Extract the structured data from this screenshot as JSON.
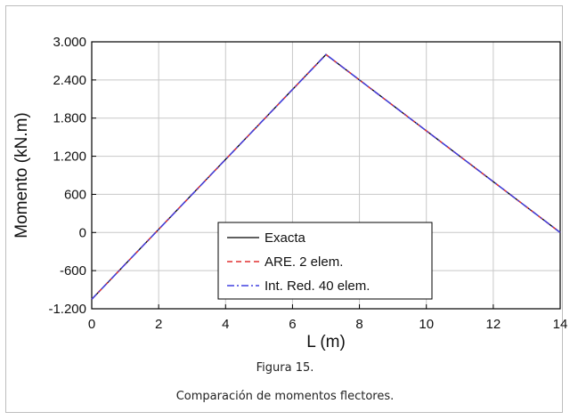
{
  "chart_data": {
    "type": "line",
    "xlabel": "L (m)",
    "ylabel": "Momento (kN.m)",
    "xlim": [
      0,
      14
    ],
    "ylim": [
      -1200,
      3000
    ],
    "x_ticks": [
      0,
      2,
      4,
      6,
      8,
      10,
      12,
      14
    ],
    "y_ticks": [
      -1200,
      -600,
      0,
      600,
      1200,
      1800,
      2400,
      3000
    ],
    "x_tick_labels": [
      "0",
      "2",
      "4",
      "6",
      "8",
      "10",
      "12",
      "14"
    ],
    "y_tick_labels": [
      "-1.200",
      "-600",
      "0",
      "600",
      "1.200",
      "1.800",
      "2.400",
      "3.000"
    ],
    "grid": true,
    "legend_position": "bottom-center",
    "series": [
      {
        "name": "Exacta",
        "color": "#000000",
        "style": "solid",
        "x": [
          0,
          7,
          14
        ],
        "y": [
          -1050,
          2800,
          0
        ]
      },
      {
        "name": "ARE. 2 elem.",
        "color": "#e03030",
        "style": "dashed",
        "x": [
          0,
          7,
          14
        ],
        "y": [
          -1050,
          2800,
          0
        ]
      },
      {
        "name": "Int. Red. 40 elem.",
        "color": "#4040e0",
        "style": "dashdot",
        "x": [
          0,
          0.35,
          0.7,
          1.05,
          1.4,
          1.75,
          2.1,
          2.45,
          2.8,
          3.15,
          3.5,
          3.85,
          4.2,
          4.55,
          4.9,
          5.25,
          5.6,
          5.95,
          6.3,
          6.65,
          7,
          7.35,
          7.7,
          8.05,
          8.4,
          8.75,
          9.1,
          9.45,
          9.8,
          10.15,
          10.5,
          10.85,
          11.2,
          11.55,
          11.9,
          12.25,
          12.6,
          12.95,
          13.3,
          13.65,
          14
        ],
        "y": [
          -1050,
          -857,
          -665,
          -472,
          -280,
          -88,
          105,
          297,
          490,
          682,
          875,
          1068,
          1260,
          1453,
          1645,
          1838,
          2030,
          2222,
          2415,
          2607,
          2800,
          2660,
          2520,
          2380,
          2240,
          2100,
          1960,
          1820,
          1680,
          1540,
          1400,
          1260,
          1120,
          980,
          840,
          700,
          560,
          420,
          280,
          140,
          0
        ]
      }
    ]
  },
  "captions": {
    "figure_label": "Figura 15.",
    "description": "Comparación de momentos flectores."
  }
}
